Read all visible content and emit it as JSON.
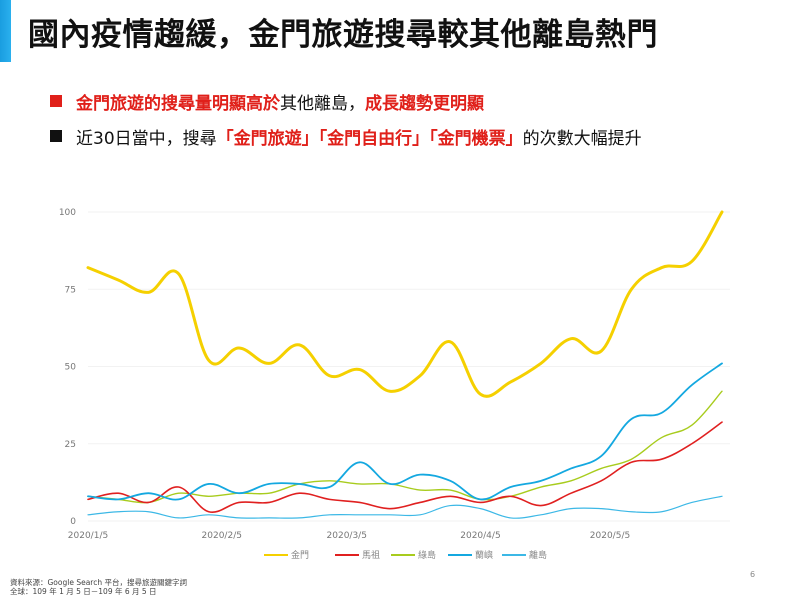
{
  "slide": {
    "title": "國內疫情趨緩，金門旅遊搜尋較其他離島熱門",
    "accent_color": "#1ea5e6",
    "page_number": "6"
  },
  "bullets": [
    {
      "marker_color": "#e0201a",
      "segments": [
        {
          "text": "金門旅遊的搜尋量明顯高於",
          "style": "red"
        },
        {
          "text": "其他離島，",
          "style": "plain"
        },
        {
          "text": "成長趨勢更明顯",
          "style": "red"
        }
      ]
    },
    {
      "marker_color": "#111111",
      "segments": [
        {
          "text": "近30日當中，搜尋",
          "style": "plain"
        },
        {
          "text": "「金門旅遊」「金門自由行」「金門機票」",
          "style": "red"
        },
        {
          "text": "的次數大幅提升",
          "style": "plain"
        }
      ]
    }
  ],
  "footer": {
    "source": "資料來源：Google Search 平台，搜尋旅遊關鍵字詞",
    "range": "全球：109 年 1 月 5 日－109 年 6 月 5 日"
  },
  "chart_data": {
    "type": "line",
    "title": "",
    "xlabel": "",
    "ylabel": "",
    "ylim": [
      0,
      100
    ],
    "yticks": [
      0,
      25,
      50,
      75,
      100
    ],
    "grid": true,
    "legend_position": "bottom",
    "x_tick_labels": [
      {
        "label": "2020/1/5",
        "index": 0
      },
      {
        "label": "2020/2/5",
        "index": 4.43
      },
      {
        "label": "2020/3/5",
        "index": 8.57
      },
      {
        "label": "2020/4/5",
        "index": 13
      },
      {
        "label": "2020/5/5",
        "index": 17.29
      }
    ],
    "x": [
      "2020/1/5",
      "2020/1/12",
      "2020/1/19",
      "2020/1/26",
      "2020/2/2",
      "2020/2/9",
      "2020/2/16",
      "2020/2/23",
      "2020/3/1",
      "2020/3/8",
      "2020/3/15",
      "2020/3/22",
      "2020/3/29",
      "2020/4/5",
      "2020/4/12",
      "2020/4/19",
      "2020/4/26",
      "2020/5/3",
      "2020/5/10",
      "2020/5/17",
      "2020/5/24",
      "2020/5/31"
    ],
    "series": [
      {
        "name": "金門",
        "color": "#f5d000",
        "width": 3,
        "values": [
          82,
          78,
          74,
          80,
          52,
          56,
          51,
          57,
          47,
          49,
          42,
          47,
          58,
          41,
          45,
          51,
          59,
          55,
          75,
          82,
          84,
          100
        ]
      },
      {
        "name": "馬祖",
        "color": "#e02020",
        "width": 1.6,
        "values": [
          7,
          9,
          6,
          11,
          3,
          6,
          6,
          9,
          7,
          6,
          4,
          6,
          8,
          6,
          8,
          5,
          9,
          13,
          19,
          20,
          25,
          32
        ]
      },
      {
        "name": "綠島",
        "color": "#a8cc1e",
        "width": 1.4,
        "values": [
          8,
          7,
          6,
          9,
          8,
          9,
          9,
          12,
          13,
          12,
          12,
          10,
          10,
          7,
          8,
          11,
          13,
          17,
          20,
          27,
          31,
          42
        ]
      },
      {
        "name": "蘭嶼",
        "color": "#14a8e0",
        "width": 1.8,
        "values": [
          8,
          7,
          9,
          7,
          12,
          9,
          12,
          12,
          11,
          19,
          12,
          15,
          13,
          7,
          11,
          13,
          17,
          21,
          33,
          35,
          44,
          51
        ]
      },
      {
        "name": "離島",
        "color": "#3cb8e6",
        "width": 1.2,
        "values": [
          2,
          3,
          3,
          1,
          2,
          1,
          1,
          1,
          2,
          2,
          2,
          2,
          5,
          4,
          1,
          2,
          4,
          4,
          3,
          3,
          6,
          8
        ]
      }
    ]
  }
}
